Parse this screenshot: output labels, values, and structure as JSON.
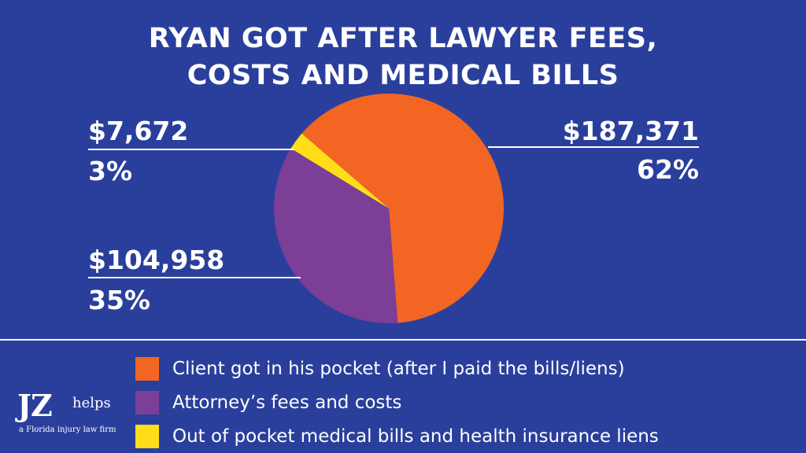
{
  "title_lines": [
    "RYAN GOT AFTER LAWYER FEES,",
    "COSTS AND MEDICAL BILLS"
  ],
  "chart_data": {
    "type": "pie",
    "title": "RYAN GOT AFTER LAWYER FEES, COSTS AND MEDICAL BILLS",
    "slices": [
      {
        "label": "Client got in his pocket (after I paid the bills/liens)",
        "amount": "$187,371",
        "percent": "62%",
        "value": 187371,
        "color": "#f26522"
      },
      {
        "label": "Attorney’s fees and costs",
        "amount": "$104,958",
        "percent": "35%",
        "value": 104958,
        "color": "#7b3f98"
      },
      {
        "label": "Out of pocket medical bills and health insurance liens",
        "amount": "$7,672",
        "percent": "3%",
        "value": 7672,
        "color": "#ffde17"
      }
    ],
    "legend_position": "bottom"
  },
  "logo": {
    "mark": "JZ",
    "word": "helps",
    "tagline": "a Florida injury law firm"
  },
  "colors": {
    "background": "#2a3f9c",
    "text": "#ffffff"
  }
}
